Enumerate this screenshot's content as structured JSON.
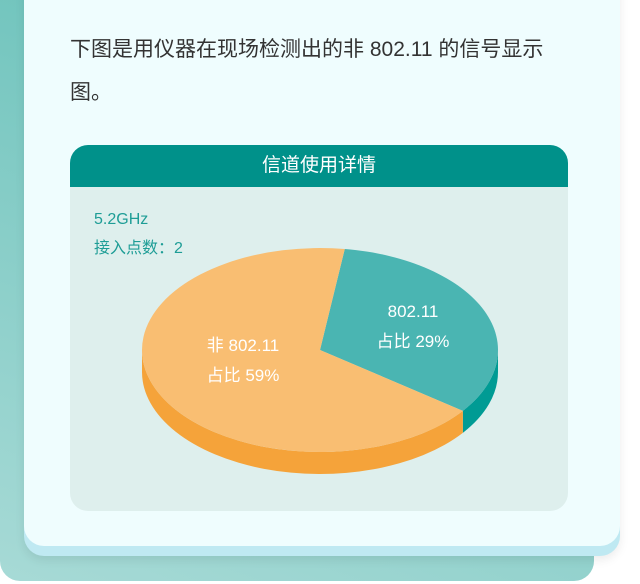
{
  "intro_text": "下图是用仪器在现场检测出的非 802.11 的信号显示图。",
  "panel": {
    "title": "信道使用详情",
    "band": "5.2GHz",
    "access_points": "接入点数：2"
  },
  "chart_data": {
    "type": "pie",
    "style": "3d",
    "title": "信道使用详情",
    "slices": [
      {
        "name": "802.11",
        "value": 29,
        "label_line1": "802.11",
        "label_line2": "占比 29%",
        "color_top": "#4ab5b2",
        "color_side": "#009b94"
      },
      {
        "name": "非 802.11",
        "value": 59,
        "label_line1": "非 802.11",
        "label_line2": "占比 59%",
        "color_top": "#f9be72",
        "color_side": "#f5a33a"
      }
    ]
  }
}
